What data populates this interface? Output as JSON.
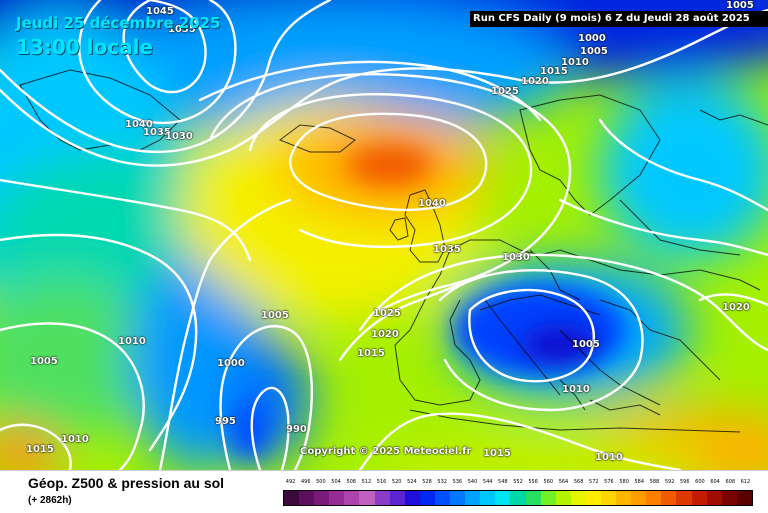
{
  "header": {
    "date": "Jeudi 25 décembre 2025",
    "time": "13:00 locale",
    "run_info": "Run CFS Daily (9 mois) 6 Z du Jeudi 28 août 2025"
  },
  "map": {
    "isobar_labels": [
      "1045",
      "1035",
      "1005",
      "1000",
      "1005",
      "1010",
      "1015",
      "1020",
      "1025",
      "1040",
      "1035",
      "1030",
      "1040",
      "1035",
      "1030",
      "1025",
      "1020",
      "1015",
      "1005",
      "1010",
      "1005",
      "1010",
      "1015",
      "1000",
      "995",
      "990",
      "1005",
      "1010",
      "1010",
      "1015",
      "1020"
    ],
    "copyright": "Copyright © 2025 Meteociel.fr"
  },
  "footer": {
    "title": "Géop. Z500 & pression au sol",
    "lead_time": "(+ 2862h)"
  },
  "legend": {
    "labels": [
      "492",
      "496",
      "500",
      "504",
      "508",
      "512",
      "516",
      "520",
      "524",
      "528",
      "532",
      "536",
      "540",
      "544",
      "548",
      "552",
      "556",
      "560",
      "564",
      "568",
      "572",
      "576",
      "580",
      "584",
      "588",
      "592",
      "596",
      "600",
      "604",
      "608",
      "612"
    ],
    "colors": [
      "#3d0a3d",
      "#5c0f5c",
      "#7a1a7a",
      "#952b95",
      "#ad44ad",
      "#c060c0",
      "#8a3cc8",
      "#5a24d0",
      "#1e10d8",
      "#0028f0",
      "#0050ff",
      "#0078ff",
      "#00a2ff",
      "#00c8ff",
      "#00e4f4",
      "#00d8a8",
      "#28e060",
      "#72f028",
      "#b4f400",
      "#e6f400",
      "#ffec00",
      "#ffd400",
      "#ffb800",
      "#ff9c00",
      "#ff7e00",
      "#f05a00",
      "#dc3800",
      "#c41c00",
      "#a00c00",
      "#7c0400",
      "#5a0000"
    ]
  },
  "colors": {
    "ocean_deep": "#0038e8",
    "subtropical_high": "#ff9000",
    "label_cyan": "#00e5ff"
  }
}
